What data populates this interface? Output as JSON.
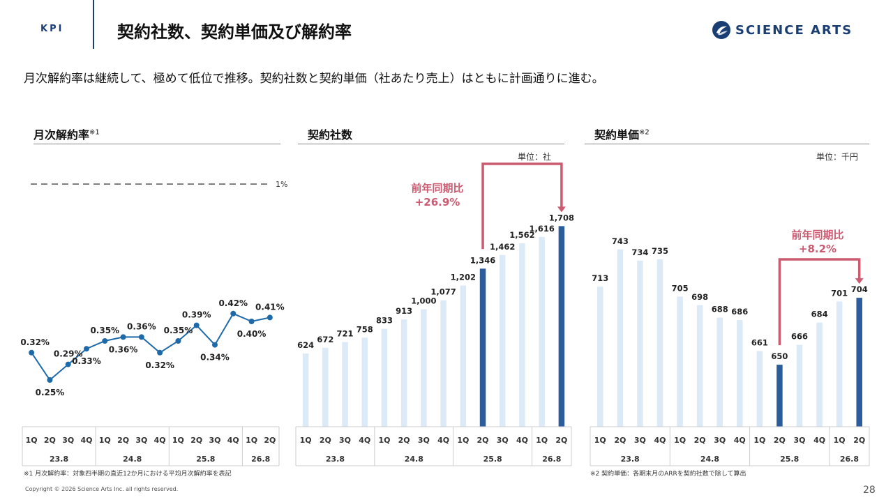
{
  "header": {
    "section": "KPI",
    "title": "契約社数、契約単価及び解約率",
    "logo_text": "SCIENCE ARTS"
  },
  "subtitle": "月次解約率は継続して、極めて低位で推移。契約社数と契約単価（社あたり売上）はともに計画通りに進む。",
  "panels": {
    "churn": {
      "title": "月次解約率",
      "note_mark": "※1",
      "ref_label": "1%",
      "footnote": "※1 月次解約率：対象四半期の直近12か月における平均月次解約率を表記"
    },
    "count": {
      "title": "契約社数",
      "unit": "単位：社",
      "yoy_label": "前年同期比",
      "yoy_value": "+26.9%"
    },
    "price": {
      "title": "契約単価",
      "note_mark": "※2",
      "unit": "単位：千円",
      "yoy_label": "前年同期比",
      "yoy_value": "+8.2%",
      "footnote": "※2 契約単価：各期末月のARRを契約社数で除して算出"
    }
  },
  "colors": {
    "navy": "#1a3d73",
    "bar_light": "#dce9f6",
    "bar_dark": "#2b5c9c",
    "line": "#1e6aa8",
    "accent": "#cc5a71"
  },
  "footer": {
    "copyright": "Copyright © 2026 Science Arts Inc. all rights reserved.",
    "page": "28"
  },
  "chart_data": [
    {
      "type": "line",
      "title": "月次解約率",
      "categories": [
        "1Q",
        "2Q",
        "3Q",
        "4Q",
        "1Q",
        "2Q",
        "3Q",
        "4Q",
        "1Q",
        "2Q",
        "3Q",
        "4Q",
        "1Q",
        "2Q"
      ],
      "periods": [
        {
          "label": "23.8",
          "span": 4
        },
        {
          "label": "24.8",
          "span": 4
        },
        {
          "label": "25.8",
          "span": 4
        },
        {
          "label": "26.8",
          "span": 2
        }
      ],
      "values": [
        0.32,
        0.25,
        0.29,
        0.33,
        0.35,
        0.36,
        0.36,
        0.32,
        0.35,
        0.39,
        0.34,
        0.42,
        0.4,
        0.41
      ],
      "labels": [
        "0.32%",
        "0.25%",
        "0.29%",
        "0.33%",
        "0.35%",
        "0.36%",
        "0.36%",
        "0.32%",
        "0.35%",
        "0.39%",
        "0.34%",
        "0.42%",
        "0.40%",
        "0.41%"
      ],
      "reference_line": 1.0
    },
    {
      "type": "bar",
      "title": "契約社数",
      "categories": [
        "1Q",
        "2Q",
        "3Q",
        "4Q",
        "1Q",
        "2Q",
        "3Q",
        "4Q",
        "1Q",
        "2Q",
        "3Q",
        "4Q",
        "1Q",
        "2Q"
      ],
      "periods": [
        {
          "label": "23.8",
          "span": 4
        },
        {
          "label": "24.8",
          "span": 4
        },
        {
          "label": "25.8",
          "span": 4
        },
        {
          "label": "26.8",
          "span": 2
        }
      ],
      "values": [
        624,
        672,
        721,
        758,
        833,
        913,
        1000,
        1077,
        1202,
        1346,
        1462,
        1562,
        1616,
        1708
      ],
      "labels": [
        "624",
        "672",
        "721",
        "758",
        "833",
        "913",
        "1,000",
        "1,077",
        "1,202",
        "1,346",
        "1,462",
        "1,562",
        "1,616",
        "1,708"
      ],
      "highlight": [
        9,
        13
      ],
      "ylim": [
        0,
        1900
      ]
    },
    {
      "type": "bar",
      "title": "契約単価",
      "categories": [
        "1Q",
        "2Q",
        "3Q",
        "4Q",
        "1Q",
        "2Q",
        "3Q",
        "4Q",
        "1Q",
        "2Q",
        "3Q",
        "4Q",
        "1Q",
        "2Q"
      ],
      "periods": [
        {
          "label": "23.8",
          "span": 4
        },
        {
          "label": "24.8",
          "span": 4
        },
        {
          "label": "25.8",
          "span": 4
        },
        {
          "label": "26.8",
          "span": 2
        }
      ],
      "values": [
        713,
        743,
        734,
        735,
        705,
        698,
        688,
        686,
        661,
        650,
        666,
        684,
        701,
        704
      ],
      "labels": [
        "713",
        "743",
        "734",
        "735",
        "705",
        "698",
        "688",
        "686",
        "661",
        "650",
        "666",
        "684",
        "701",
        "704"
      ],
      "highlight": [
        9,
        13
      ],
      "ylim": [
        600,
        780
      ]
    }
  ]
}
